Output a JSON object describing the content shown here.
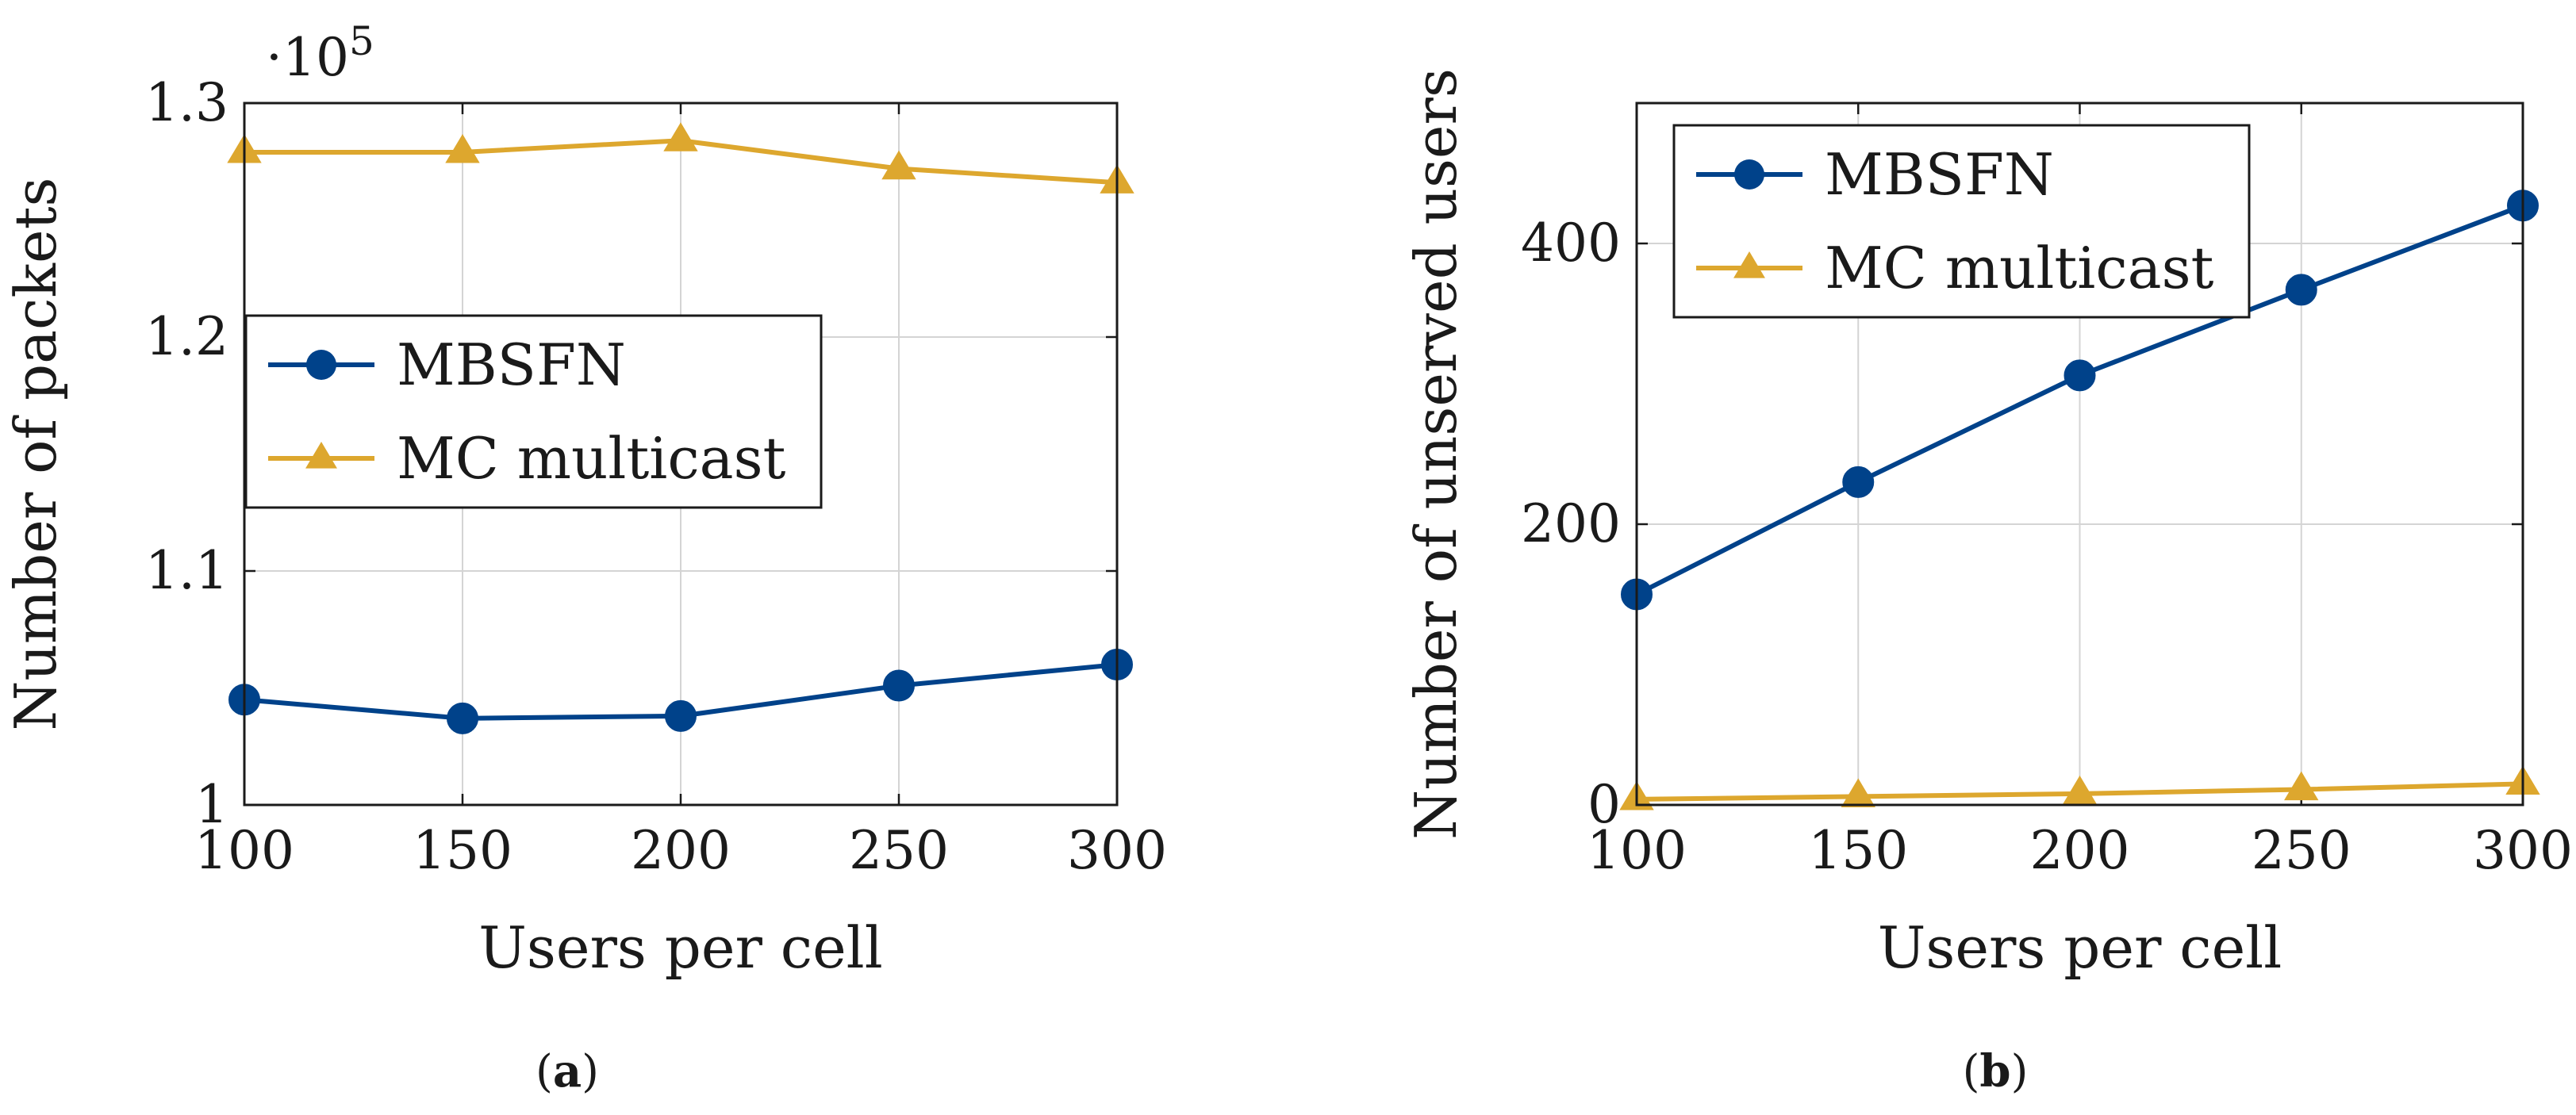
{
  "colors": {
    "mbsfn": "#00428a",
    "mc_multicast": "#dda72e",
    "grid": "#d4d4d4",
    "axis": "#1a1a1a"
  },
  "chart_data": [
    {
      "type": "line",
      "caption": "(a)",
      "caption_letter": "a",
      "xlabel": "Users per cell",
      "ylabel": "Number of packets",
      "multiplier_text": "·10",
      "multiplier_exponent": "5",
      "x": [
        100,
        150,
        200,
        250,
        300
      ],
      "xticks": [
        100,
        150,
        200,
        250,
        300
      ],
      "xtick_labels": [
        "100",
        "150",
        "200",
        "250",
        "300"
      ],
      "xlim": [
        100,
        300
      ],
      "ylim": [
        1.0,
        1.3
      ],
      "yticks": [
        1.0,
        1.1,
        1.2,
        1.3
      ],
      "ytick_labels": [
        "1",
        "1.1",
        "1.2",
        "1.3"
      ],
      "grid": true,
      "legend_position": "center-left",
      "series": [
        {
          "name": "MBSFN",
          "marker": "circle",
          "values": [
            1.045,
            1.037,
            1.038,
            1.051,
            1.06
          ]
        },
        {
          "name": "MC multicast",
          "marker": "triangle",
          "values": [
            1.279,
            1.279,
            1.284,
            1.272,
            1.266
          ]
        }
      ]
    },
    {
      "type": "line",
      "caption": "(b)",
      "caption_letter": "b",
      "xlabel": "Users per cell",
      "ylabel": "Number of unserved users",
      "x": [
        100,
        150,
        200,
        250,
        300
      ],
      "xticks": [
        100,
        150,
        200,
        250,
        300
      ],
      "xtick_labels": [
        "100",
        "150",
        "200",
        "250",
        "300"
      ],
      "xlim": [
        100,
        300
      ],
      "ylim": [
        0,
        500
      ],
      "yticks": [
        0,
        200,
        400
      ],
      "ytick_labels": [
        "0",
        "200",
        "400"
      ],
      "grid": true,
      "legend_position": "top-left",
      "series": [
        {
          "name": "MBSFN",
          "marker": "circle",
          "values": [
            150,
            230,
            306,
            367,
            427
          ]
        },
        {
          "name": "MC multicast",
          "marker": "triangle",
          "values": [
            4,
            6,
            8,
            11,
            15
          ]
        }
      ]
    }
  ]
}
